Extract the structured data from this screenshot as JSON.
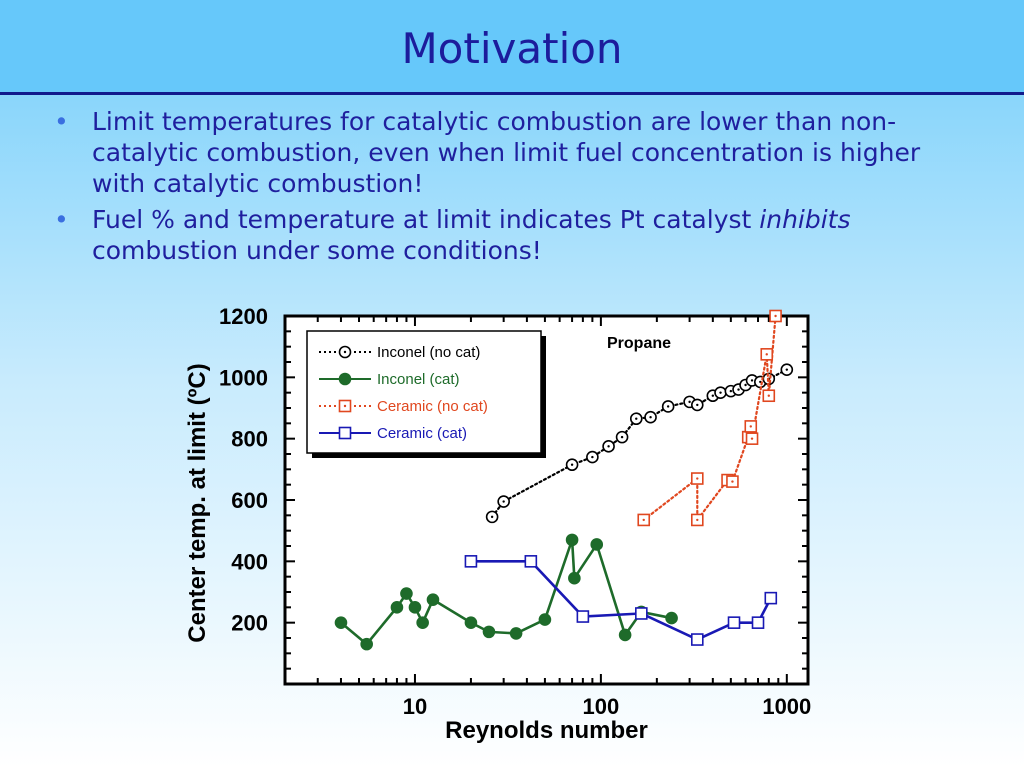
{
  "slide": {
    "title": "Motivation",
    "bullets": [
      {
        "text": "Limit temperatures for catalytic combustion are lower than non-catalytic combustion, even when limit fuel concentration is higher with catalytic combustion!"
      },
      {
        "text_italic": "inhibits",
        "text_before": "Fuel % and temperature at limit indicates Pt catalyst",
        "text_after": "combustion under some conditions!"
      }
    ],
    "bullet_glyph": "•"
  },
  "colors": {
    "title_text": "#1c1c9c",
    "body_text": "#1f1f9e",
    "inconel_no_cat": "#000000",
    "inconel_cat": "#1e6b2a",
    "ceramic_no_cat": "#e0471f",
    "ceramic_cat": "#1919b4"
  },
  "chart_data": {
    "type": "line",
    "title": "",
    "annotation": "Propane",
    "xlabel": "Reynolds number",
    "ylabel": "Center temp. at limit (ºC)",
    "x_scale": "log",
    "xlim": [
      2,
      1300
    ],
    "ylim": [
      0,
      1200
    ],
    "x_ticks": [
      10,
      100,
      1000
    ],
    "x_tick_labels": [
      "10",
      "100",
      "1000"
    ],
    "y_ticks": [
      200,
      400,
      600,
      800,
      1000,
      1200
    ],
    "y_tick_labels": [
      "200",
      "400",
      "600",
      "800",
      "1000",
      "1200"
    ],
    "legend_position": "top-left",
    "series": [
      {
        "name": "Inconel (no cat)",
        "color": "#000000",
        "line": "dotted",
        "marker": "circle-open",
        "points": [
          [
            26,
            545
          ],
          [
            30,
            595
          ],
          [
            70,
            715
          ],
          [
            90,
            740
          ],
          [
            110,
            775
          ],
          [
            130,
            805
          ],
          [
            155,
            865
          ],
          [
            185,
            870
          ],
          [
            230,
            905
          ],
          [
            300,
            920
          ],
          [
            330,
            910
          ],
          [
            400,
            940
          ],
          [
            440,
            950
          ],
          [
            500,
            955
          ],
          [
            550,
            960
          ],
          [
            600,
            975
          ],
          [
            650,
            990
          ],
          [
            720,
            985
          ],
          [
            800,
            995
          ],
          [
            1000,
            1025
          ]
        ]
      },
      {
        "name": "Inconel (cat)",
        "color": "#1e6b2a",
        "line": "solid",
        "marker": "circle-filled",
        "points": [
          [
            4,
            200
          ],
          [
            5.5,
            130
          ],
          [
            8,
            250
          ],
          [
            9,
            295
          ],
          [
            10,
            250
          ],
          [
            11,
            200
          ],
          [
            12.5,
            275
          ],
          [
            20,
            200
          ],
          [
            25,
            170
          ],
          [
            35,
            165
          ],
          [
            50,
            210
          ],
          [
            70,
            470
          ],
          [
            72,
            345
          ],
          [
            95,
            455
          ],
          [
            135,
            160
          ],
          [
            165,
            235
          ],
          [
            240,
            215
          ]
        ]
      },
      {
        "name": "Ceramic (no cat)",
        "color": "#e0471f",
        "line": "dotted",
        "marker": "square-open",
        "points": [
          [
            170,
            535
          ],
          [
            330,
            670
          ],
          [
            330,
            535
          ],
          [
            480,
            665
          ],
          [
            510,
            660
          ],
          [
            620,
            805
          ],
          [
            640,
            840
          ],
          [
            650,
            800
          ],
          [
            780,
            1075
          ],
          [
            800,
            940
          ],
          [
            870,
            1200
          ]
        ]
      },
      {
        "name": "Ceramic (cat)",
        "color": "#1919b4",
        "line": "solid",
        "marker": "square-open",
        "points": [
          [
            20,
            400
          ],
          [
            42,
            400
          ],
          [
            80,
            220
          ],
          [
            165,
            230
          ],
          [
            330,
            145
          ],
          [
            520,
            200
          ],
          [
            700,
            200
          ],
          [
            820,
            280
          ]
        ]
      }
    ]
  }
}
